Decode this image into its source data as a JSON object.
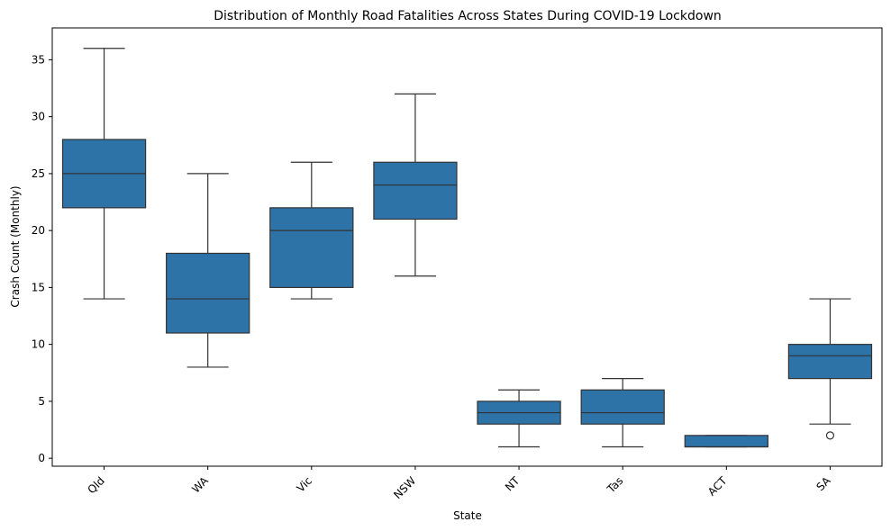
{
  "chart_data": {
    "type": "boxplot",
    "title": "Distribution of Monthly Road Fatalities Across States During COVID-19 Lockdown",
    "xlabel": "State",
    "ylabel": "Crash Count (Monthly)",
    "ylim": [
      -0.7,
      37.8
    ],
    "yticks": [
      0,
      5,
      10,
      15,
      20,
      25,
      30,
      35
    ],
    "categories": [
      "Qld",
      "WA",
      "Vic",
      "NSW",
      "NT",
      "Tas",
      "ACT",
      "SA"
    ],
    "boxes": [
      {
        "category": "Qld",
        "whisker_low": 14,
        "q1": 22,
        "median": 25,
        "q3": 28,
        "whisker_high": 36,
        "outliers": []
      },
      {
        "category": "WA",
        "whisker_low": 8,
        "q1": 11,
        "median": 14,
        "q3": 18,
        "whisker_high": 25,
        "outliers": []
      },
      {
        "category": "Vic",
        "whisker_low": 14,
        "q1": 15,
        "median": 20,
        "q3": 22,
        "whisker_high": 26,
        "outliers": []
      },
      {
        "category": "NSW",
        "whisker_low": 16,
        "q1": 21,
        "median": 24,
        "q3": 26,
        "whisker_high": 32,
        "outliers": []
      },
      {
        "category": "NT",
        "whisker_low": 1,
        "q1": 3,
        "median": 4,
        "q3": 5,
        "whisker_high": 6,
        "outliers": []
      },
      {
        "category": "Tas",
        "whisker_low": 1,
        "q1": 3,
        "median": 4,
        "q3": 6,
        "whisker_high": 7,
        "outliers": []
      },
      {
        "category": "ACT",
        "whisker_low": 1,
        "q1": 1,
        "median": 1,
        "q3": 2,
        "whisker_high": 2,
        "outliers": []
      },
      {
        "category": "SA",
        "whisker_low": 3,
        "q1": 7,
        "median": 9,
        "q3": 10,
        "whisker_high": 14,
        "outliers": [
          2
        ]
      }
    ],
    "box_color": "#2e73a8",
    "line_color": "#333333",
    "grid": false,
    "xtick_rotation": 45
  }
}
